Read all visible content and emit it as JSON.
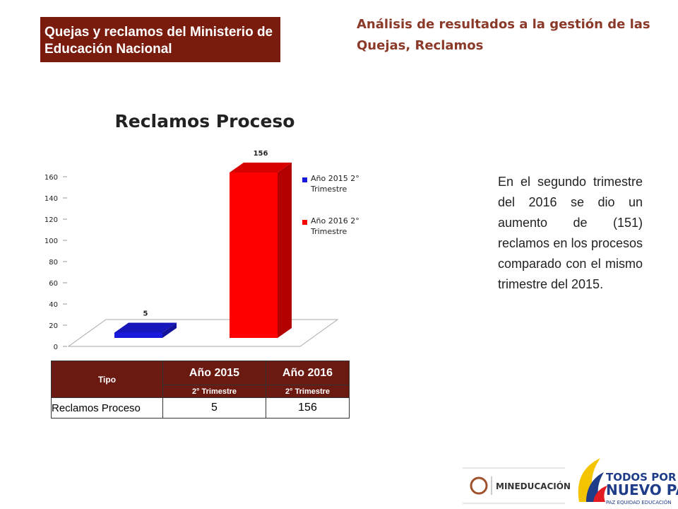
{
  "header": {
    "box_title": "Quejas y reclamos del Ministerio de Educación Nacional",
    "title": "Análisis de resultados a la gestión de las Quejas, Reclamos"
  },
  "chart_data": {
    "type": "bar",
    "title": "Reclamos Proceso",
    "categories": [
      null
    ],
    "series": [
      {
        "name": "Año 2015 2° Trimestre",
        "color": "#1a1adc",
        "values": [
          5
        ]
      },
      {
        "name": "Año 2016 2° Trimestre",
        "color": "#ff0000",
        "values": [
          156
        ]
      }
    ],
    "ylim": [
      0,
      160
    ],
    "yticks": [
      0,
      20,
      40,
      60,
      80,
      100,
      120,
      140,
      160
    ],
    "legend": "right"
  },
  "text": "En el segundo trimestre del 2016 se dio un aumento de (151) reclamos en los procesos comparado con el mismo trimestre del 2015.",
  "table": {
    "header": [
      "Tipo",
      "Año 2015",
      "Año 2016"
    ],
    "subheader": [
      "2° Trimestre",
      "2° Trimestre"
    ],
    "rows": [
      [
        "Reclamos Proceso",
        "5",
        "156"
      ]
    ]
  },
  "logos": {
    "ministry": "MINEDUCACIÓN",
    "line1": "TODOS POR UN",
    "line2": "NUEVO PAÍS",
    "line3": "PAZ EQUIDAD EDUCACIÓN"
  }
}
